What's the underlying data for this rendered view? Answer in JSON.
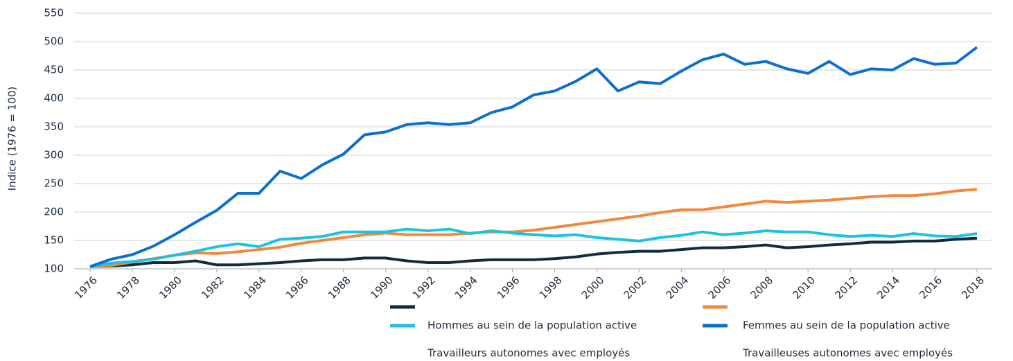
{
  "chart_data": {
    "type": "line",
    "y_label": "Indice (1976 = 100)",
    "x": [
      1976,
      1977,
      1978,
      1979,
      1980,
      1981,
      1982,
      1983,
      1984,
      1985,
      1986,
      1987,
      1988,
      1989,
      1990,
      1991,
      1992,
      1993,
      1994,
      1995,
      1996,
      1997,
      1998,
      1999,
      2000,
      2001,
      2002,
      2003,
      2004,
      2005,
      2006,
      2007,
      2008,
      2009,
      2010,
      2011,
      2012,
      2013,
      2014,
      2015,
      2016,
      2017,
      2018
    ],
    "xlim": [
      1976,
      2018
    ],
    "xticks": [
      1976,
      1978,
      1980,
      1982,
      1984,
      1986,
      1988,
      1990,
      1992,
      1994,
      1996,
      1998,
      2000,
      2002,
      2004,
      2006,
      2008,
      2010,
      2012,
      2014,
      2016,
      2018
    ],
    "ylim": [
      100,
      550
    ],
    "yticks": [
      100,
      150,
      200,
      250,
      300,
      350,
      400,
      450,
      500,
      550
    ],
    "grid": true,
    "series": [
      {
        "name": "Hommes au sein de la population active",
        "color": "#0f2d3c",
        "values": [
          104,
          105,
          107,
          111,
          111,
          114,
          107,
          107,
          109,
          111,
          114,
          116,
          116,
          119,
          119,
          114,
          111,
          111,
          114,
          116,
          116,
          116,
          118,
          121,
          126,
          129,
          131,
          131,
          134,
          137,
          137,
          139,
          142,
          137,
          139,
          142,
          144,
          147,
          147,
          149,
          149,
          152,
          154
        ]
      },
      {
        "name": "Femmes au sein de la population active",
        "color": "#f0883e",
        "values": [
          104,
          106,
          112,
          118,
          124,
          128,
          127,
          130,
          134,
          138,
          145,
          150,
          155,
          160,
          163,
          160,
          160,
          160,
          163,
          165,
          165,
          168,
          173,
          178,
          183,
          188,
          193,
          199,
          204,
          204,
          209,
          214,
          219,
          217,
          219,
          221,
          224,
          227,
          229,
          229,
          232,
          237,
          240
        ]
      },
      {
        "name": "Travailleurs autonomes avec employés",
        "color": "#1ec2e0",
        "values": [
          104,
          110,
          113,
          117,
          124,
          131,
          139,
          144,
          139,
          152,
          154,
          157,
          165,
          165,
          165,
          170,
          167,
          170,
          162,
          167,
          163,
          160,
          158,
          160,
          155,
          152,
          149,
          155,
          159,
          165,
          160,
          163,
          167,
          165,
          165,
          160,
          157,
          159,
          157,
          162,
          158,
          157,
          162
        ]
      },
      {
        "name": "Travailleuses autonomes avec employés",
        "color": "#0b6fcf",
        "values": [
          104,
          117,
          125,
          140,
          160,
          182,
          203,
          233,
          233,
          272,
          259,
          283,
          302,
          336,
          341,
          354,
          357,
          354,
          357,
          375,
          385,
          406,
          413,
          430,
          452,
          413,
          429,
          426,
          448,
          468,
          478,
          460,
          465,
          452,
          444,
          465,
          442,
          452,
          450,
          470,
          460,
          462,
          490
        ]
      }
    ]
  }
}
